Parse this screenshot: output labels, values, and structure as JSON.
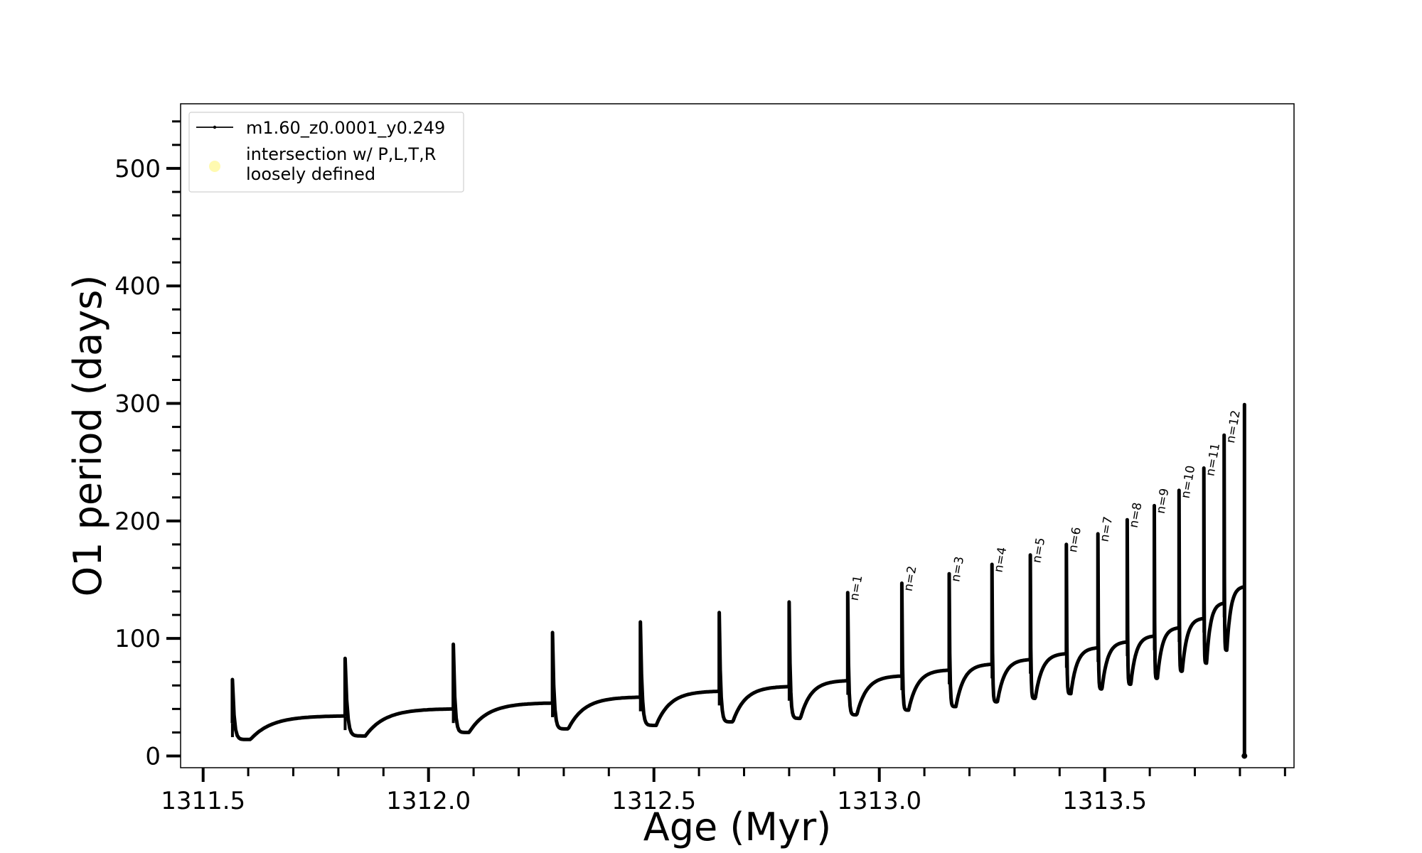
{
  "chart_data": {
    "type": "line",
    "title": "",
    "xlabel": "Age (Myr)",
    "ylabel": "O1 period (days)",
    "xlim": [
      1311.45,
      1313.92
    ],
    "ylim": [
      -10,
      555
    ],
    "x_ticks": [
      1311.5,
      1312.0,
      1312.5,
      1313.0,
      1313.5
    ],
    "x_tick_labels": [
      "1311.5",
      "1312.0",
      "1312.5",
      "1313.0",
      "1313.5"
    ],
    "y_ticks": [
      0,
      100,
      200,
      300,
      400,
      500
    ],
    "y_tick_labels": [
      "0",
      "100",
      "200",
      "300",
      "400",
      "500"
    ],
    "grid": false,
    "legend": {
      "placement": "upper-left",
      "entries": [
        {
          "label": "m1.60_z0.0001_y0.249",
          "marker": "line-dot",
          "color": "#000000"
        },
        {
          "label": "intersection w/ P,L,T,R",
          "label2": "loosely defined",
          "marker": "dot",
          "color": "#fffab0"
        }
      ]
    },
    "series": [
      {
        "name": "m1.60_z0.0001_y0.249",
        "color": "#000000",
        "pulses": [
          {
            "x": 1311.565,
            "peak": 65,
            "pre": 28,
            "min": 14,
            "min_x": 1311.605,
            "next_x": 1311.815,
            "next_pre": 34
          },
          {
            "x": 1311.815,
            "peak": 83,
            "pre": 34,
            "min": 17,
            "min_x": 1311.86,
            "next_x": 1312.055,
            "next_pre": 40
          },
          {
            "x": 1312.055,
            "peak": 95,
            "pre": 40,
            "min": 20,
            "min_x": 1312.09,
            "next_x": 1312.275,
            "next_pre": 45
          },
          {
            "x": 1312.275,
            "peak": 105,
            "pre": 45,
            "min": 23,
            "min_x": 1312.31,
            "next_x": 1312.47,
            "next_pre": 50
          },
          {
            "x": 1312.47,
            "peak": 114,
            "pre": 50,
            "min": 26,
            "min_x": 1312.505,
            "next_x": 1312.645,
            "next_pre": 55
          },
          {
            "x": 1312.645,
            "peak": 122,
            "pre": 55,
            "min": 29,
            "min_x": 1312.675,
            "next_x": 1312.8,
            "next_pre": 59
          },
          {
            "x": 1312.8,
            "peak": 131,
            "pre": 59,
            "min": 32,
            "min_x": 1312.825,
            "next_x": 1312.93,
            "next_pre": 64
          },
          {
            "x": 1312.93,
            "peak": 139,
            "pre": 64,
            "min": 35,
            "min_x": 1312.95,
            "next_x": 1313.05,
            "next_pre": 68
          },
          {
            "x": 1313.05,
            "peak": 147,
            "pre": 68,
            "min": 39,
            "min_x": 1313.065,
            "next_x": 1313.155,
            "next_pre": 73
          },
          {
            "x": 1313.155,
            "peak": 155,
            "pre": 73,
            "min": 42,
            "min_x": 1313.17,
            "next_x": 1313.25,
            "next_pre": 78
          },
          {
            "x": 1313.25,
            "peak": 163,
            "pre": 78,
            "min": 46,
            "min_x": 1313.262,
            "next_x": 1313.335,
            "next_pre": 82
          },
          {
            "x": 1313.335,
            "peak": 171,
            "pre": 82,
            "min": 49,
            "min_x": 1313.346,
            "next_x": 1313.415,
            "next_pre": 87
          },
          {
            "x": 1313.415,
            "peak": 180,
            "pre": 87,
            "min": 53,
            "min_x": 1313.425,
            "next_x": 1313.485,
            "next_pre": 92
          },
          {
            "x": 1313.485,
            "peak": 189,
            "pre": 92,
            "min": 57,
            "min_x": 1313.494,
            "next_x": 1313.55,
            "next_pre": 97
          },
          {
            "x": 1313.55,
            "peak": 201,
            "pre": 97,
            "min": 61,
            "min_x": 1313.558,
            "next_x": 1313.61,
            "next_pre": 102
          },
          {
            "x": 1313.61,
            "peak": 213,
            "pre": 102,
            "min": 66,
            "min_x": 1313.617,
            "next_x": 1313.665,
            "next_pre": 109
          },
          {
            "x": 1313.665,
            "peak": 226,
            "pre": 109,
            "min": 72,
            "min_x": 1313.672,
            "next_x": 1313.72,
            "next_pre": 117
          },
          {
            "x": 1313.72,
            "peak": 245,
            "pre": 117,
            "min": 79,
            "min_x": 1313.726,
            "next_x": 1313.765,
            "next_pre": 130
          },
          {
            "x": 1313.765,
            "peak": 273,
            "pre": 130,
            "min": 90,
            "min_x": 1313.771,
            "next_x": 1313.81,
            "next_pre": 144
          }
        ],
        "final_drop": {
          "x": 1313.81,
          "peak": 299,
          "end": 0
        }
      }
    ],
    "annotations": [
      {
        "text": "n=1",
        "x": 1312.93
      },
      {
        "text": "n=2",
        "x": 1313.05
      },
      {
        "text": "n=3",
        "x": 1313.155
      },
      {
        "text": "n=4",
        "x": 1313.25
      },
      {
        "text": "n=5",
        "x": 1313.335
      },
      {
        "text": "n=6",
        "x": 1313.415
      },
      {
        "text": "n=7",
        "x": 1313.485
      },
      {
        "text": "n=8",
        "x": 1313.55
      },
      {
        "text": "n=9",
        "x": 1313.61
      },
      {
        "text": "n=10",
        "x": 1313.665
      },
      {
        "text": "n=11",
        "x": 1313.72
      },
      {
        "text": "n=12",
        "x": 1313.765
      }
    ]
  }
}
